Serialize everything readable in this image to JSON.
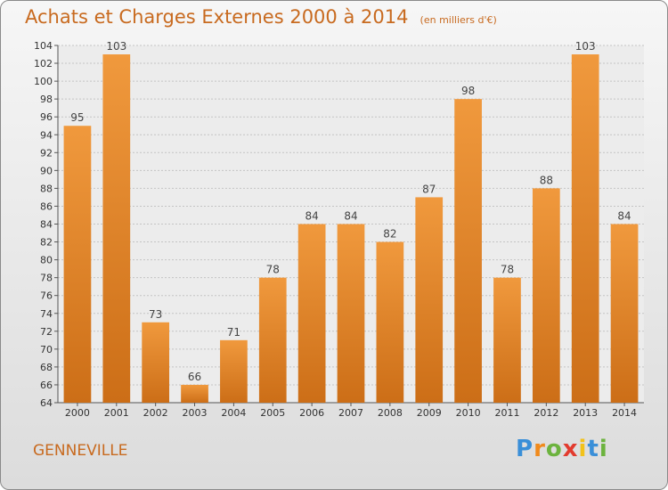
{
  "chart_data": {
    "type": "bar",
    "title": "Achats et Charges Externes 2000 à 2014",
    "subtitle": "(en milliers d'€)",
    "categories": [
      "2000",
      "2001",
      "2002",
      "2003",
      "2004",
      "2005",
      "2006",
      "2007",
      "2008",
      "2009",
      "2010",
      "2011",
      "2012",
      "2013",
      "2014"
    ],
    "values": [
      95,
      103,
      73,
      66,
      71,
      78,
      84,
      84,
      82,
      87,
      98,
      78,
      88,
      103,
      84
    ],
    "ylim": [
      64,
      104
    ],
    "yticks": [
      64,
      66,
      68,
      70,
      72,
      74,
      76,
      78,
      80,
      82,
      84,
      86,
      88,
      90,
      92,
      94,
      96,
      98,
      100,
      102,
      104
    ],
    "grid": true,
    "bar_color": "#f0993d",
    "bar_color_dark": "#cc6e17"
  },
  "footer": {
    "city": "GENNEVILLE",
    "logo_letters": [
      "P",
      "r",
      "o",
      "x",
      "i",
      "t",
      "i"
    ],
    "logo_colors": [
      "#3a8fd8",
      "#f08a1c",
      "#6cb33e",
      "#e23b2e",
      "#f2c21a",
      "#3a8fd8",
      "#6cb33e"
    ]
  }
}
